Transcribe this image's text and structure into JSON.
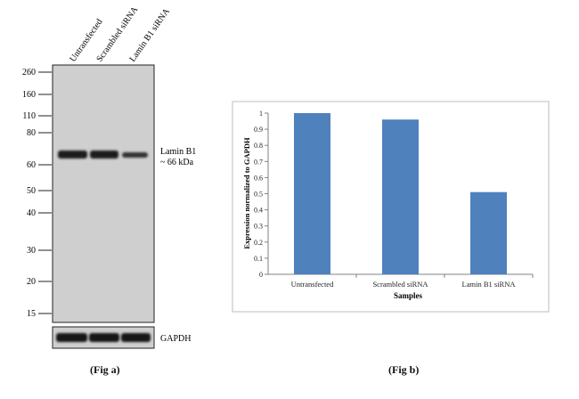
{
  "western_blot": {
    "lane_labels": [
      "Untransfected",
      "Scrambled siRNA",
      "Lamin B1 siRNA"
    ],
    "mw_markers": [
      "260",
      "160",
      "110",
      "80",
      "60",
      "50",
      "40",
      "30",
      "20",
      "15"
    ],
    "band_label_line1": "Lamin B1",
    "band_label_line2": "~ 66 kDa",
    "loading_control_label": "GAPDH",
    "caption": "(Fig a)"
  },
  "bar_chart": {
    "caption": "(Fig b)"
  },
  "chart_data": {
    "type": "bar",
    "categories": [
      "Untransfected",
      "Scrambled siRNA",
      "Lamin B1 siRNA"
    ],
    "values": [
      1.0,
      0.96,
      0.51
    ],
    "title": "",
    "xlabel": "Samples",
    "ylabel": "Expression  normalized to GAPDH",
    "ylim": [
      0,
      1
    ],
    "yticks": [
      "0",
      "0.1",
      "0.2",
      "0.3",
      "0.4",
      "0.5",
      "0.6",
      "0.7",
      "0.8",
      "0.9",
      "1"
    ],
    "grid": false,
    "bar_color": "#4f81bd"
  }
}
